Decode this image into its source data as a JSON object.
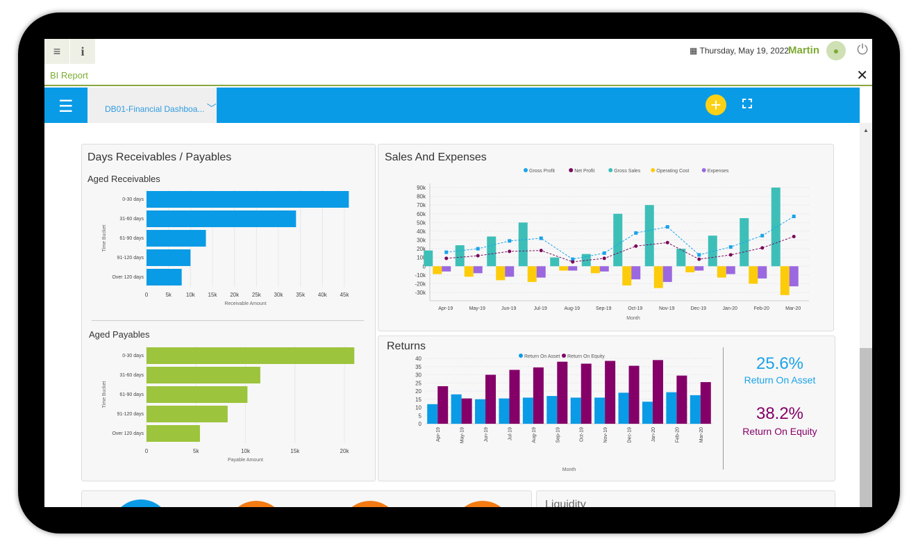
{
  "header": {
    "date": "Thursday, May 19, 2022",
    "user": "Martin",
    "tab_title": "BI Report",
    "dashboard": "DB01-Financial Dashboa..."
  },
  "receivables": {
    "title": "Days Receivables / Payables",
    "aged_receivables": "Aged Receivables",
    "aged_payables": "Aged Payables"
  },
  "kpis": {
    "roa_value": "25.6%",
    "roa_label": "Return On Asset",
    "roe_value": "38.2%",
    "roe_label": "Return On Equity"
  },
  "bottom": {
    "liquidity": "Liquidity"
  },
  "chart_data": [
    {
      "id": "recv",
      "type": "bar",
      "orientation": "horizontal",
      "title": "Aged Receivables",
      "categories": [
        "0-30 days",
        "31-60 days",
        "61-90 days",
        "91-120 days",
        "Over 120 days"
      ],
      "values": [
        46000,
        34000,
        13500,
        10000,
        8000
      ],
      "xlabel": "Receivable Amount",
      "ylabel": "Time Bucket",
      "xlim": [
        0,
        45000
      ],
      "ticks": [
        "0",
        "5k",
        "10k",
        "15k",
        "20k",
        "25k",
        "30k",
        "35k",
        "40k",
        "45k"
      ],
      "color": "#0a9be6"
    },
    {
      "id": "pay",
      "type": "bar",
      "orientation": "horizontal",
      "title": "Aged Payables",
      "categories": [
        "0-30 days",
        "31-60 days",
        "61-90 days",
        "91-120 days",
        "Over 120 days"
      ],
      "values": [
        21000,
        11500,
        10200,
        8200,
        5400
      ],
      "xlabel": "Payable Amount",
      "ylabel": "Time Bucket",
      "xlim": [
        0,
        20000
      ],
      "ticks": [
        "0",
        "5k",
        "10k",
        "15k",
        "20k"
      ],
      "color": "#9cc43c"
    },
    {
      "id": "sales",
      "type": "bar",
      "title": "Sales And Expenses",
      "xlabel": "Month",
      "ylim": [
        -30000,
        90000
      ],
      "categories": [
        "Apr-19",
        "May-19",
        "Jun-19",
        "Jul-19",
        "Aug-19",
        "Sep-19",
        "Oct-19",
        "Nov-19",
        "Dec-19",
        "Jan-20",
        "Feb-20",
        "Mar-20"
      ],
      "ticks": [
        "90k",
        "80k",
        "70k",
        "60k",
        "50k",
        "40k",
        "30k",
        "20k",
        "10k",
        "0",
        "-10k",
        "-20k",
        "-30k"
      ],
      "series": [
        {
          "name": "Gross Profit",
          "kind": "line",
          "color": "#1aa3e8",
          "values": [
            16,
            20,
            29,
            32,
            8,
            15,
            38,
            45,
            13,
            22,
            35,
            57
          ]
        },
        {
          "name": "Net Profit",
          "kind": "line",
          "color": "#7a0a5c",
          "values": [
            9,
            12,
            17,
            18,
            5,
            9,
            23,
            27,
            8,
            13,
            21,
            34
          ]
        },
        {
          "name": "Gross Sales",
          "kind": "bar",
          "color": "#3dbfb8",
          "values": [
            18,
            24,
            34,
            50,
            10,
            14,
            60,
            70,
            20,
            35,
            55,
            90
          ]
        },
        {
          "name": "Operating Cost",
          "kind": "bar",
          "color": "#fccc0a",
          "values": [
            -9,
            -12,
            -16,
            -18,
            -5,
            -8,
            -22,
            -25,
            -7,
            -13,
            -20,
            -33
          ]
        },
        {
          "name": "Expenses",
          "kind": "bar",
          "color": "#9b68e0",
          "values": [
            -6,
            -8,
            -12,
            -13,
            -5,
            -6,
            -15,
            -18,
            -5,
            -9,
            -14,
            -23
          ]
        }
      ],
      "units": "thousands"
    },
    {
      "id": "returns",
      "type": "bar",
      "title": "Returns",
      "xlabel": "Month",
      "ylim": [
        0,
        40
      ],
      "categories": [
        "Apr-19",
        "May-19",
        "Jun-19",
        "Jul-19",
        "Aug-19",
        "Sep-19",
        "Oct-19",
        "Nov-19",
        "Dec-19",
        "Jan-20",
        "Feb-20",
        "Mar-20"
      ],
      "ticks": [
        "40",
        "35",
        "30",
        "25",
        "20",
        "15",
        "10",
        "5",
        "0"
      ],
      "series": [
        {
          "name": "Return On Asset",
          "color": "#0a9be6",
          "values": [
            12,
            18,
            15,
            15.5,
            16,
            17,
            16,
            16,
            19,
            13.5,
            19.3,
            17.5
          ]
        },
        {
          "name": "Return On Equity",
          "color": "#840068",
          "values": [
            23,
            15.5,
            30,
            33,
            34.5,
            38,
            36.8,
            38.5,
            35.5,
            39,
            29.5,
            25.5
          ]
        }
      ]
    }
  ]
}
